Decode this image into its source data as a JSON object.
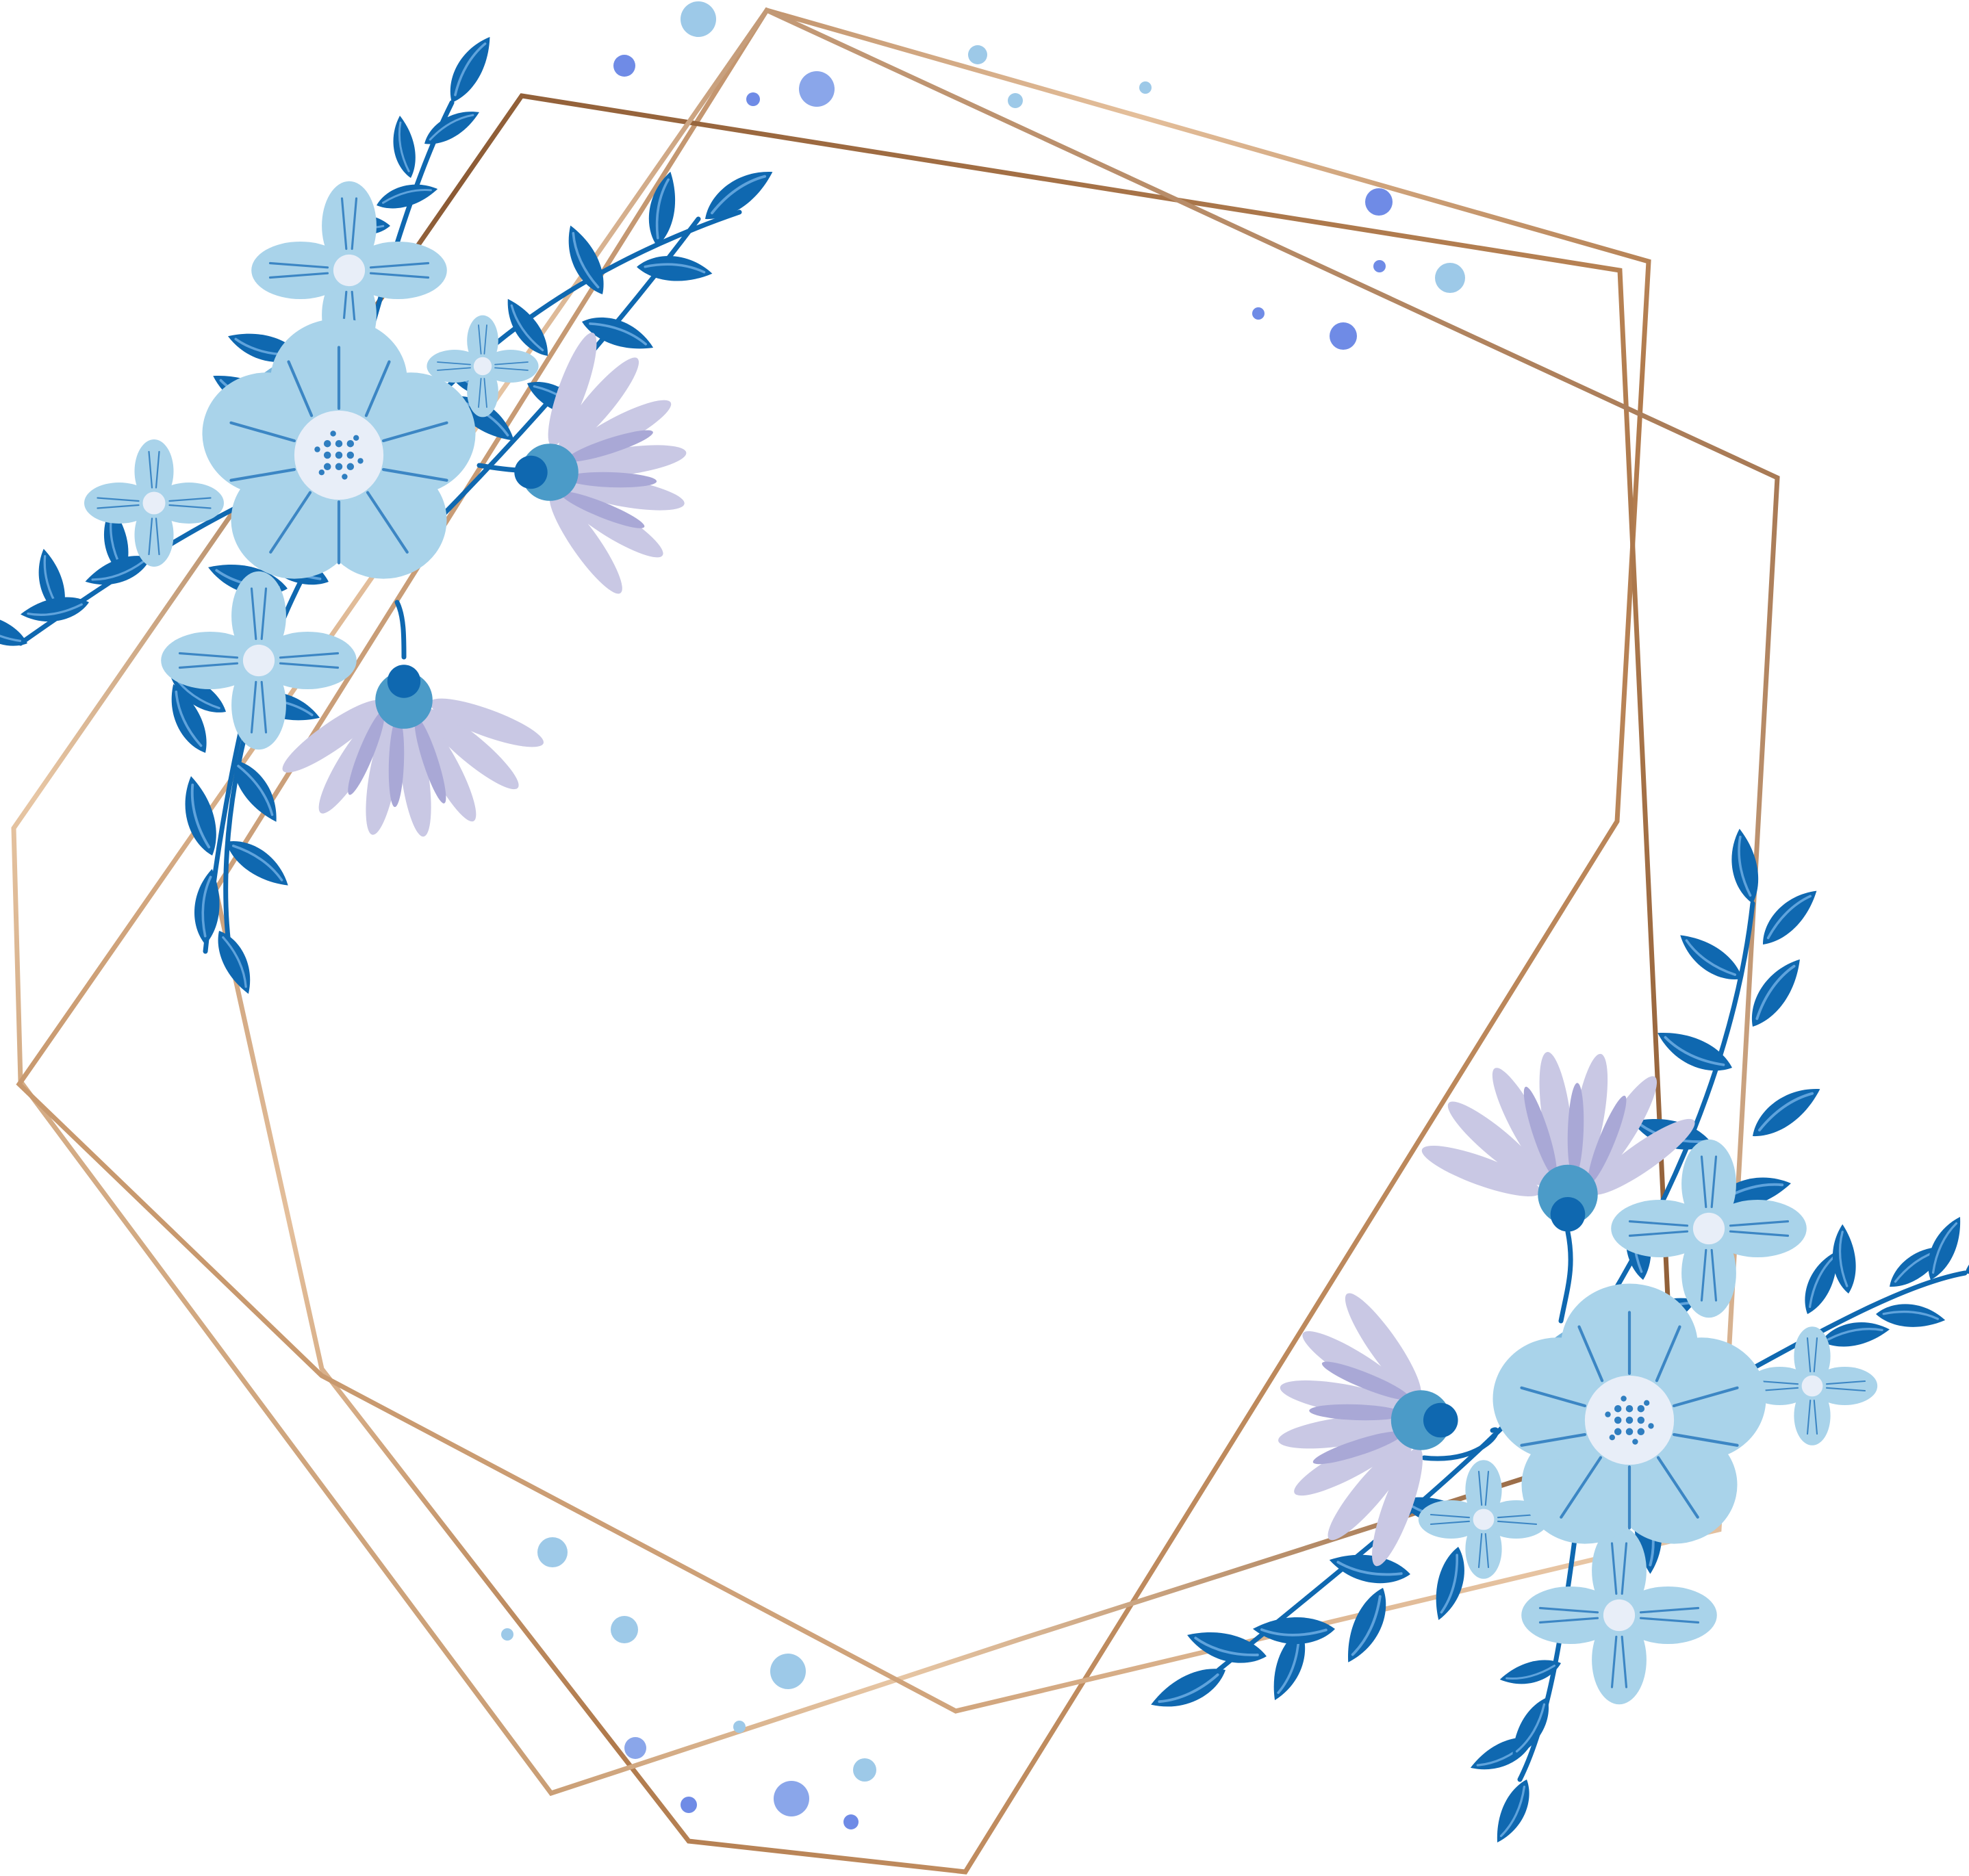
{
  "artwork": {
    "frame": {
      "style": "geometric heptagon wireframes, overlapping",
      "count": 3
    },
    "bouquets": [
      "top-left",
      "bottom-right"
    ],
    "colors": {
      "background": "#ffffff",
      "gold_dark": "#8b5a34",
      "gold_mid": "#c8925f",
      "gold_light": "#e9c7a6",
      "leaf": "#0f68b0",
      "leaf_vein": "#5fa3dc",
      "petal_light": "#a9d3ea",
      "petal_mid": "#79b6dd",
      "petal_line": "#3c86c4",
      "center": "#e8eef8",
      "daisy_petal": "#c9c8e4",
      "daisy_center": "#4b9bc8",
      "dot_blue": "#6f8be6",
      "dot_sky": "#9dc9e8"
    }
  }
}
